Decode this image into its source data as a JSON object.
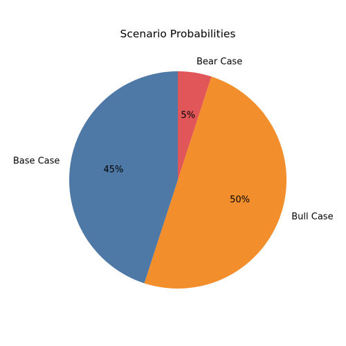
{
  "chart_data": {
    "type": "pie",
    "title": "Scenario Probabilities",
    "categories": [
      "Bear Case",
      "Bull Case",
      "Base Case"
    ],
    "values": [
      5,
      50,
      45
    ],
    "value_labels": [
      "5%",
      "50%",
      "45%"
    ],
    "colors": [
      "#e15759",
      "#f28e2b",
      "#4e79a7"
    ],
    "start_angle_deg": 90,
    "direction": "clockwise",
    "legend": "none"
  }
}
